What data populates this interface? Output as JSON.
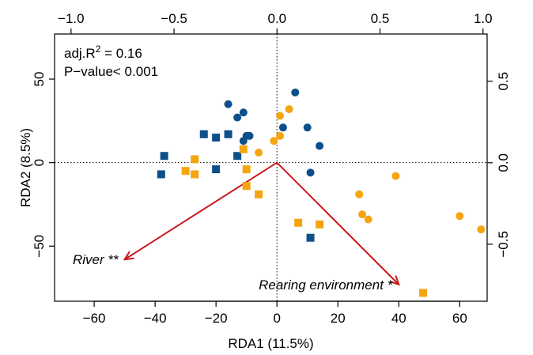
{
  "chart_data": {
    "type": "scatter",
    "title": "",
    "xlabel": "RDA1 (11.5%)",
    "ylabel": "RDA2 (8.5%)",
    "xlim": [
      -73,
      69
    ],
    "ylim": [
      -83,
      77
    ],
    "x_ticks": [
      -60,
      -40,
      -20,
      0,
      20,
      40,
      60
    ],
    "x_tick_labels": [
      "−60",
      "−40",
      "−20",
      "0",
      "20",
      "40",
      "60"
    ],
    "y_ticks": [
      -50,
      0,
      50
    ],
    "y_tick_labels": [
      "−50",
      "0",
      "50"
    ],
    "top_axis": {
      "ticks": [
        -1.0,
        -0.5,
        0.0,
        0.5,
        1.0
      ],
      "tick_labels": [
        "−1.0",
        "−0.5",
        "0.0",
        "0.5",
        "1.0"
      ],
      "lim": [
        -1.08,
        1.02
      ]
    },
    "right_axis": {
      "ticks": [
        -0.5,
        0.0,
        0.5
      ],
      "tick_labels": [
        "−0.5",
        "0.0",
        "0.5"
      ],
      "lim": [
        -0.85,
        0.79
      ]
    },
    "reference_lines": {
      "x": 0,
      "y": 0,
      "style": "dotted"
    },
    "annotations": {
      "adj_r2_prefix": "adj.R",
      "adj_r2_sup": "2",
      "adj_r2_suffix": " = 0.16",
      "p_value": "P−value< 0.001"
    },
    "series": [
      {
        "color": "#0d4f8b",
        "marker": "circle",
        "points": [
          [
            -16,
            35
          ],
          [
            -13,
            27
          ],
          [
            -11,
            30
          ],
          [
            -10,
            16
          ],
          [
            -9,
            16
          ],
          [
            -11,
            13
          ],
          [
            6,
            42
          ],
          [
            2,
            21
          ],
          [
            10,
            21
          ],
          [
            14,
            10
          ],
          [
            11,
            -6
          ]
        ]
      },
      {
        "color": "#0d4f8b",
        "marker": "square",
        "points": [
          [
            -37,
            4
          ],
          [
            -38,
            -7
          ],
          [
            -24,
            17
          ],
          [
            -20,
            15
          ],
          [
            -16,
            17
          ],
          [
            -13,
            4
          ],
          [
            -20,
            -4
          ],
          [
            11,
            -45
          ]
        ]
      },
      {
        "color": "#f5a511",
        "marker": "circle",
        "points": [
          [
            1,
            28
          ],
          [
            4,
            32
          ],
          [
            -1,
            13
          ],
          [
            1,
            16
          ],
          [
            -6,
            6
          ],
          [
            39,
            -8
          ],
          [
            27,
            -19
          ],
          [
            28,
            -31
          ],
          [
            30,
            -34
          ],
          [
            60,
            -32
          ],
          [
            67,
            -40
          ]
        ]
      },
      {
        "color": "#f5a511",
        "marker": "square",
        "points": [
          [
            -27,
            2
          ],
          [
            -30,
            -5
          ],
          [
            -27,
            -7
          ],
          [
            -11,
            8
          ],
          [
            -10,
            -4
          ],
          [
            -10,
            -14
          ],
          [
            -6,
            -19
          ],
          [
            7,
            -36
          ],
          [
            14,
            -37
          ],
          [
            48,
            -78
          ]
        ]
      }
    ],
    "vectors": [
      {
        "label": "River **",
        "x": -50,
        "y": -58,
        "color": "#c8181d"
      },
      {
        "label": "Rearing environment *",
        "x": 40,
        "y": -73,
        "color": "#c8181d"
      }
    ]
  }
}
